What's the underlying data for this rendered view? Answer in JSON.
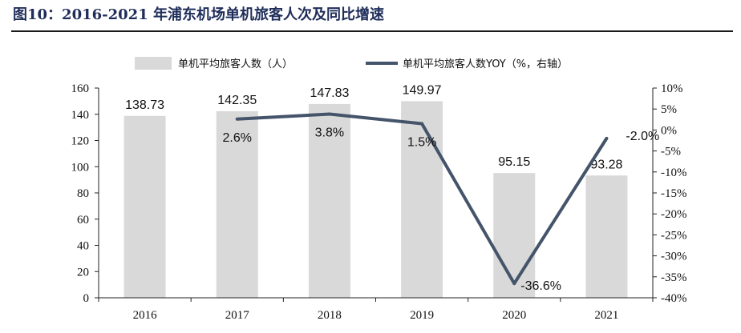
{
  "title": "图10：2016-2021 年浦东机场单机旅客人次及同比增速",
  "chart_data": {
    "type": "bar",
    "categories": [
      "2016",
      "2017",
      "2018",
      "2019",
      "2020",
      "2021"
    ],
    "series": [
      {
        "name": "单机平均旅客人数（人）",
        "type": "bar",
        "axis": "left",
        "values": [
          138.73,
          142.35,
          147.83,
          149.97,
          95.15,
          93.28
        ],
        "labels": [
          "138.73",
          "142.35",
          "147.83",
          "149.97",
          "95.15",
          "93.28"
        ]
      },
      {
        "name": "单机平均旅客人数YOY（%，右轴）",
        "type": "line",
        "axis": "right",
        "values": [
          null,
          2.6,
          3.8,
          1.5,
          -36.6,
          -2.0
        ],
        "labels": [
          "",
          "2.6%",
          "3.8%",
          "1.5%",
          "-36.6%",
          "-2.0%"
        ]
      }
    ],
    "ylim_left": [
      0,
      160
    ],
    "yticks_left": [
      "0",
      "20",
      "40",
      "60",
      "80",
      "100",
      "120",
      "140",
      "160"
    ],
    "ylim_right": [
      -40,
      10
    ],
    "yticks_right": [
      "-40%",
      "-35%",
      "-30%",
      "-25%",
      "-20%",
      "-15%",
      "-10%",
      "-5%",
      "0%",
      "5%",
      "10%"
    ],
    "legend": "top",
    "grid": false,
    "colors": {
      "bar": "#d9d9d9",
      "line": "#44546a",
      "title": "#1f2d5a"
    }
  }
}
